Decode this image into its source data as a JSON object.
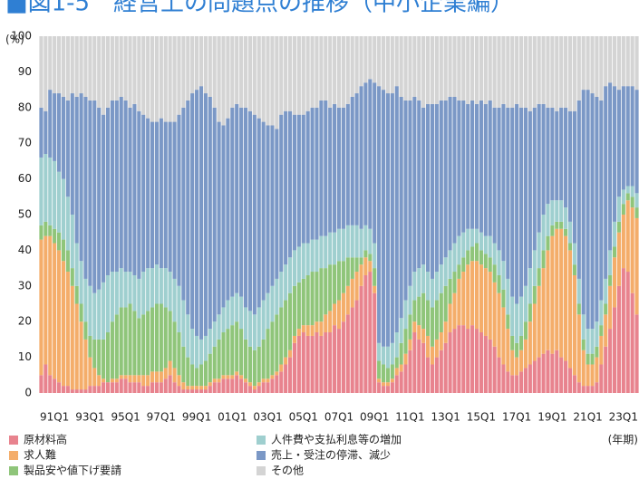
{
  "chart_data": {
    "type": "stacked_bar",
    "title": "■図1-5　経営上の問題点の推移（中小企業編）",
    "y_label": "(%)",
    "x_label": "(年期)",
    "ylim": [
      0,
      100
    ],
    "yticks": [
      0,
      10,
      20,
      30,
      40,
      50,
      60,
      70,
      80,
      90,
      100
    ],
    "grid": false,
    "categories": [
      null,
      null,
      null,
      "91Q1",
      null,
      null,
      null,
      null,
      null,
      null,
      null,
      "93Q1",
      null,
      null,
      null,
      null,
      null,
      null,
      null,
      "95Q1",
      null,
      null,
      null,
      null,
      null,
      null,
      null,
      "97Q1",
      null,
      null,
      null,
      null,
      null,
      null,
      null,
      "99Q1",
      null,
      null,
      null,
      null,
      null,
      null,
      null,
      "01Q1",
      null,
      null,
      null,
      null,
      null,
      null,
      null,
      "03Q1",
      null,
      null,
      null,
      null,
      null,
      null,
      null,
      "05Q1",
      null,
      null,
      null,
      null,
      null,
      null,
      null,
      "07Q1",
      null,
      null,
      null,
      null,
      null,
      null,
      null,
      "09Q1",
      null,
      null,
      null,
      null,
      null,
      null,
      null,
      "11Q1",
      null,
      null,
      null,
      null,
      null,
      null,
      null,
      "13Q1",
      null,
      null,
      null,
      null,
      null,
      null,
      null,
      "15Q1",
      null,
      null,
      null,
      null,
      null,
      null,
      null,
      "17Q1",
      null,
      null,
      null,
      null,
      null,
      null,
      null,
      "19Q1",
      null,
      null,
      null,
      null,
      null,
      null,
      null,
      "21Q1",
      null,
      null,
      null,
      null,
      null,
      null,
      null,
      "23Q1",
      null,
      null,
      null
    ],
    "series": [
      {
        "name": "原材料高",
        "color": "#e8838e",
        "values": [
          5,
          8,
          5,
          4,
          3,
          2,
          2,
          1,
          1,
          1,
          1,
          2,
          2,
          2,
          3,
          3,
          3,
          3,
          4,
          4,
          3,
          3,
          3,
          2,
          2,
          3,
          3,
          3,
          4,
          5,
          3,
          2,
          1,
          1,
          1,
          1,
          1,
          1,
          2,
          3,
          3,
          4,
          4,
          4,
          5,
          4,
          3,
          2,
          1,
          2,
          3,
          3,
          4,
          5,
          6,
          8,
          10,
          14,
          16,
          17,
          16,
          16,
          17,
          16,
          17,
          17,
          19,
          18,
          20,
          22,
          24,
          26,
          30,
          33,
          34,
          28,
          3,
          2,
          2,
          3,
          5,
          6,
          8,
          12,
          17,
          15,
          14,
          10,
          8,
          10,
          12,
          14,
          17,
          18,
          19,
          19,
          18,
          19,
          18,
          17,
          16,
          15,
          13,
          10,
          8,
          6,
          5,
          5,
          6,
          7,
          8,
          9,
          10,
          11,
          12,
          11,
          12,
          10,
          9,
          7,
          5,
          3,
          2,
          2,
          2,
          3,
          8,
          13,
          18,
          24,
          30,
          35,
          34,
          28,
          22
        ]
      },
      {
        "name": "求人難",
        "color": "#f4ad6a",
        "values": [
          38,
          36,
          39,
          38,
          37,
          35,
          32,
          29,
          24,
          19,
          14,
          8,
          5,
          3,
          1,
          0,
          1,
          1,
          1,
          1,
          2,
          2,
          2,
          3,
          3,
          3,
          3,
          3,
          3,
          4,
          4,
          3,
          2,
          1,
          1,
          1,
          1,
          1,
          1,
          1,
          1,
          1,
          1,
          1,
          1,
          1,
          1,
          1,
          1,
          1,
          1,
          1,
          1,
          1,
          2,
          2,
          2,
          2,
          2,
          2,
          3,
          3,
          3,
          4,
          5,
          6,
          6,
          8,
          8,
          8,
          8,
          8,
          6,
          5,
          3,
          2,
          1,
          1,
          1,
          1,
          2,
          2,
          3,
          3,
          3,
          4,
          4,
          6,
          5,
          5,
          5,
          6,
          8,
          10,
          13,
          15,
          18,
          18,
          19,
          19,
          19,
          19,
          18,
          18,
          16,
          12,
          7,
          5,
          6,
          8,
          12,
          16,
          20,
          24,
          28,
          33,
          34,
          36,
          35,
          33,
          28,
          19,
          10,
          6,
          6,
          7,
          8,
          9,
          12,
          14,
          15,
          15,
          20,
          24,
          27
        ]
      },
      {
        "name": "製品安や値下げ要請",
        "color": "#8fc57a",
        "values": [
          4,
          4,
          3,
          4,
          5,
          6,
          6,
          5,
          5,
          5,
          5,
          6,
          8,
          10,
          11,
          14,
          16,
          18,
          19,
          19,
          20,
          18,
          16,
          17,
          18,
          18,
          19,
          19,
          17,
          14,
          13,
          12,
          10,
          8,
          6,
          5,
          6,
          7,
          8,
          9,
          11,
          12,
          13,
          14,
          14,
          13,
          11,
          10,
          10,
          10,
          11,
          14,
          15,
          16,
          16,
          16,
          16,
          14,
          13,
          13,
          14,
          15,
          14,
          15,
          13,
          13,
          11,
          11,
          9,
          8,
          6,
          4,
          2,
          2,
          2,
          5,
          5,
          5,
          4,
          4,
          3,
          6,
          7,
          7,
          6,
          8,
          10,
          10,
          11,
          11,
          11,
          10,
          7,
          6,
          4,
          4,
          4,
          4,
          5,
          4,
          4,
          4,
          5,
          5,
          5,
          4,
          4,
          4,
          4,
          5,
          5,
          5,
          5,
          5,
          4,
          3,
          2,
          2,
          2,
          2,
          3,
          3,
          3,
          3,
          3,
          3,
          3,
          3,
          3,
          3,
          3,
          3,
          2,
          3,
          3
        ]
      },
      {
        "name": "人件費や支払利息等の増加",
        "color": "#9fcfcf",
        "values": [
          19,
          19,
          19,
          19,
          17,
          17,
          15,
          15,
          12,
          12,
          12,
          14,
          13,
          14,
          16,
          16,
          14,
          12,
          11,
          10,
          9,
          10,
          11,
          12,
          12,
          11,
          11,
          10,
          11,
          11,
          12,
          13,
          13,
          12,
          10,
          9,
          7,
          7,
          7,
          7,
          7,
          7,
          8,
          8,
          8,
          9,
          9,
          10,
          10,
          11,
          11,
          10,
          10,
          10,
          10,
          10,
          10,
          10,
          10,
          10,
          9,
          9,
          9,
          9,
          9,
          9,
          9,
          9,
          9,
          9,
          9,
          9,
          8,
          7,
          7,
          7,
          5,
          5,
          6,
          6,
          7,
          7,
          8,
          8,
          8,
          8,
          8,
          8,
          8,
          8,
          8,
          8,
          8,
          8,
          8,
          7,
          6,
          5,
          4,
          5,
          5,
          6,
          6,
          7,
          8,
          10,
          11,
          11,
          11,
          10,
          10,
          10,
          10,
          10,
          9,
          7,
          6,
          6,
          6,
          6,
          6,
          7,
          7,
          7,
          7,
          7,
          7,
          7,
          7,
          7,
          7,
          4,
          2,
          3,
          4
        ]
      },
      {
        "name": "売上・受注の停滞、減少",
        "color": "#7b98c6",
        "values": [
          14,
          12,
          19,
          19,
          22,
          23,
          27,
          34,
          41,
          47,
          51,
          52,
          54,
          51,
          47,
          47,
          48,
          48,
          48,
          48,
          46,
          48,
          47,
          44,
          42,
          41,
          40,
          42,
          41,
          42,
          44,
          48,
          54,
          60,
          66,
          69,
          71,
          68,
          65,
          60,
          54,
          51,
          51,
          53,
          53,
          53,
          56,
          56,
          56,
          53,
          50,
          47,
          45,
          42,
          44,
          43,
          41,
          38,
          37,
          36,
          37,
          37,
          37,
          38,
          38,
          35,
          36,
          34,
          34,
          34,
          36,
          37,
          40,
          40,
          42,
          45,
          72,
          72,
          71,
          70,
          69,
          62,
          56,
          52,
          49,
          47,
          44,
          47,
          49,
          47,
          46,
          44,
          43,
          41,
          38,
          37,
          35,
          36,
          35,
          37,
          37,
          38,
          38,
          40,
          44,
          48,
          53,
          56,
          53,
          50,
          44,
          40,
          36,
          31,
          27,
          26,
          25,
          26,
          28,
          31,
          37,
          50,
          63,
          67,
          66,
          63,
          56,
          54,
          47,
          38,
          30,
          29,
          28,
          28,
          29
        ]
      },
      {
        "name": "その他",
        "color": "#d4d4d4",
        "values": [
          20,
          21,
          15,
          16,
          16,
          17,
          18,
          16,
          17,
          16,
          17,
          18,
          18,
          20,
          22,
          20,
          18,
          18,
          17,
          18,
          20,
          19,
          21,
          22,
          23,
          24,
          24,
          23,
          24,
          24,
          24,
          22,
          20,
          18,
          16,
          15,
          14,
          16,
          17,
          20,
          24,
          25,
          23,
          20,
          19,
          20,
          20,
          21,
          22,
          23,
          24,
          25,
          25,
          26,
          22,
          21,
          21,
          22,
          22,
          22,
          21,
          20,
          20,
          18,
          18,
          20,
          19,
          20,
          20,
          19,
          17,
          16,
          14,
          13,
          12,
          13,
          14,
          15,
          16,
          16,
          14,
          17,
          18,
          18,
          17,
          18,
          20,
          19,
          19,
          19,
          18,
          18,
          17,
          17,
          18,
          18,
          19,
          18,
          19,
          18,
          19,
          18,
          20,
          20,
          19,
          20,
          20,
          19,
          20,
          20,
          21,
          20,
          19,
          19,
          20,
          20,
          21,
          20,
          20,
          21,
          21,
          18,
          15,
          15,
          16,
          17,
          18,
          14,
          13,
          14,
          15,
          14,
          14,
          14,
          15
        ]
      }
    ]
  }
}
